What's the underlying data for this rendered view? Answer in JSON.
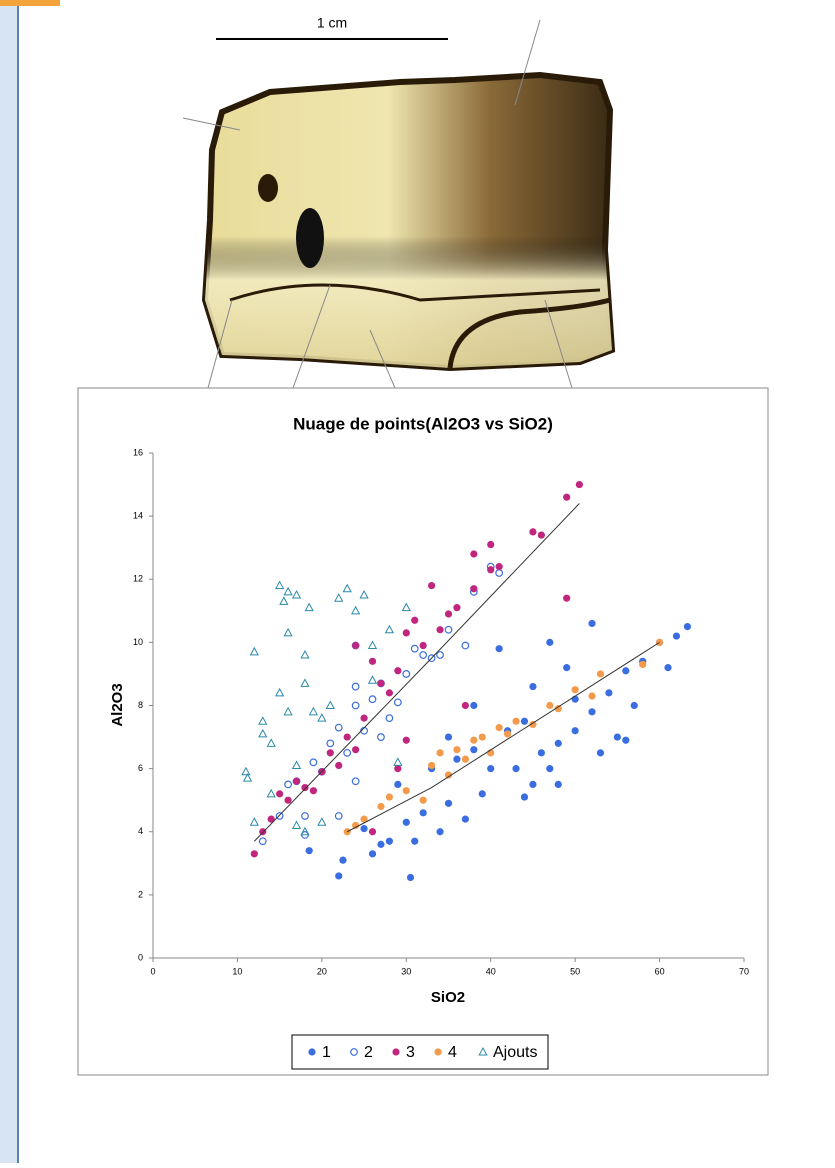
{
  "scale_bar": "1 cm",
  "chart_data": {
    "type": "scatter",
    "title": "Nuage de points(Al2O3 vs SiO2)",
    "x_label": "SiO2",
    "y_label": "Al2O3",
    "xlim": [
      0,
      70
    ],
    "ylim": [
      0,
      16
    ],
    "xticks": [
      0,
      10,
      20,
      30,
      40,
      50,
      60,
      70
    ],
    "yticks": [
      0,
      2,
      4,
      6,
      8,
      10,
      12,
      14,
      16
    ],
    "grid": false,
    "legend": "bottom",
    "series": [
      {
        "name": "1",
        "color": "#3a6ee0",
        "marker": "circle",
        "x": [
          22,
          30.5,
          22.5,
          26,
          18.5,
          28,
          25,
          30,
          32,
          35,
          37,
          29,
          33,
          36,
          38,
          40,
          42,
          41,
          44,
          46,
          48,
          50,
          52,
          54,
          56,
          58,
          60,
          62,
          63.3,
          52,
          47,
          50,
          55,
          56,
          45,
          43,
          39,
          34,
          31,
          27,
          48,
          53,
          57,
          61,
          45,
          49,
          47,
          44,
          35,
          38
        ],
        "values": [
          2.6,
          2.55,
          3.1,
          3.3,
          3.4,
          3.7,
          4.1,
          4.3,
          4.6,
          4.9,
          4.4,
          5.5,
          6.0,
          6.3,
          6.6,
          6.0,
          7.2,
          9.8,
          7.5,
          6.5,
          6.8,
          7.2,
          7.8,
          8.4,
          9.1,
          9.4,
          10.0,
          10.2,
          10.5,
          10.6,
          10.0,
          8.2,
          7.0,
          6.9,
          5.5,
          6.0,
          5.2,
          4.0,
          3.7,
          3.6,
          5.5,
          6.5,
          8.0,
          9.2,
          8.6,
          9.2,
          6.0,
          5.1,
          7.0,
          8.0
        ]
      },
      {
        "name": "2",
        "color": "#3a6ee0",
        "marker": "open-circle",
        "x": [
          13,
          15,
          17,
          18,
          19,
          20,
          21,
          22,
          23,
          24,
          24,
          24,
          25,
          26,
          27,
          27,
          28,
          29,
          30,
          31,
          32,
          33,
          34,
          35,
          37,
          38,
          40,
          41,
          22,
          24,
          18,
          16
        ],
        "values": [
          3.7,
          4.5,
          5.6,
          4.5,
          6.2,
          5.9,
          6.8,
          7.3,
          6.5,
          8.0,
          8.6,
          9.9,
          7.2,
          8.2,
          7.0,
          8.7,
          7.6,
          8.1,
          9.0,
          9.8,
          9.6,
          9.5,
          9.6,
          10.4,
          9.9,
          11.6,
          12.4,
          12.2,
          4.5,
          5.6,
          3.9,
          5.5
        ]
      },
      {
        "name": "3",
        "color": "#c0267e",
        "marker": "circle",
        "x": [
          12,
          13,
          14,
          15,
          16,
          17,
          18,
          19,
          20,
          21,
          22,
          23,
          24,
          24,
          25,
          26,
          27,
          28,
          29,
          30,
          31,
          32,
          33,
          34,
          35,
          36,
          38,
          38,
          40,
          40,
          41,
          45,
          46,
          49,
          50.5,
          49,
          37,
          30,
          29,
          26
        ],
        "values": [
          3.3,
          4.0,
          4.4,
          5.2,
          5.0,
          5.6,
          5.4,
          5.3,
          5.9,
          6.5,
          6.1,
          7.0,
          6.6,
          9.9,
          7.6,
          9.4,
          8.7,
          8.4,
          9.1,
          10.3,
          10.7,
          9.9,
          11.8,
          10.4,
          10.9,
          11.1,
          11.7,
          12.8,
          13.1,
          12.3,
          12.4,
          13.5,
          13.4,
          14.6,
          15.0,
          11.4,
          8.0,
          6.9,
          6.0,
          4.0
        ]
      },
      {
        "name": "4",
        "color": "#f39a4c",
        "marker": "circle",
        "x": [
          23,
          24,
          25,
          27,
          28,
          30,
          32,
          33,
          34,
          35,
          36,
          37,
          38,
          39,
          40,
          41,
          42,
          43,
          45,
          47,
          48,
          50,
          52,
          53,
          58,
          60
        ],
        "values": [
          4.0,
          4.2,
          4.4,
          4.8,
          5.1,
          5.3,
          5.0,
          6.1,
          6.5,
          5.8,
          6.6,
          6.3,
          6.9,
          7.0,
          6.5,
          7.3,
          7.1,
          7.5,
          7.4,
          8.0,
          7.9,
          8.5,
          8.3,
          9.0,
          9.3,
          10.0
        ]
      },
      {
        "name": "Ajouts",
        "color": "#2a8aa8",
        "marker": "triangle",
        "x": [
          11,
          11.2,
          12,
          12,
          13,
          13,
          14,
          14,
          15,
          15,
          15.5,
          16,
          16,
          16,
          17,
          17,
          17,
          18,
          18,
          18.5,
          19,
          20,
          21,
          22,
          23,
          24,
          25,
          26,
          26,
          28,
          30,
          29,
          20,
          18
        ],
        "values": [
          5.9,
          5.7,
          9.7,
          4.3,
          7.5,
          7.1,
          6.8,
          5.2,
          11.8,
          8.4,
          11.3,
          11.6,
          10.3,
          7.8,
          11.5,
          6.1,
          4.2,
          9.6,
          8.7,
          11.1,
          7.8,
          7.6,
          8.0,
          11.4,
          11.7,
          11.0,
          11.5,
          9.9,
          8.8,
          10.4,
          11.1,
          6.2,
          4.3,
          4.0
        ]
      }
    ],
    "trendlines": [
      {
        "x": [
          12,
          33,
          50.5
        ],
        "values": [
          3.7,
          9.5,
          14.4
        ]
      },
      {
        "x": [
          23,
          33,
          60
        ],
        "values": [
          4.0,
          5.4,
          10.0
        ]
      }
    ]
  }
}
